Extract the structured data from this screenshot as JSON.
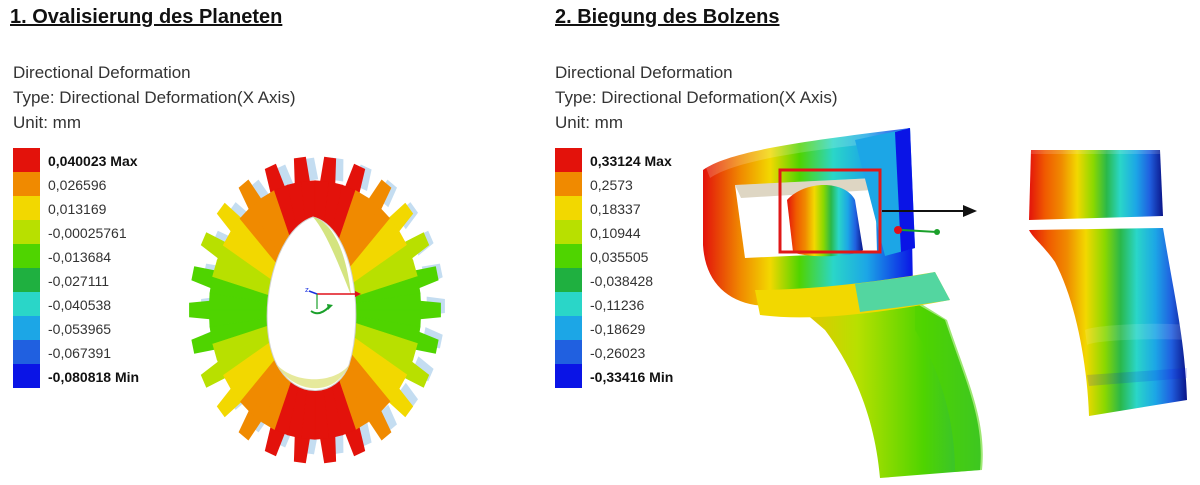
{
  "panels": [
    {
      "title": "1. Ovalisierung des Planeten",
      "meta": [
        "Directional Deformation",
        "Type: Directional Deformation(X Axis)",
        "Unit: mm"
      ],
      "legend": [
        {
          "label": "0,040023 Max",
          "color": "#e3120b",
          "bold": true
        },
        {
          "label": "0,026596",
          "color": "#f08a00",
          "bold": false
        },
        {
          "label": "0,013169",
          "color": "#f2d800",
          "bold": false
        },
        {
          "label": "-0,00025761",
          "color": "#b8e000",
          "bold": false
        },
        {
          "label": "-0,013684",
          "color": "#4fd400",
          "bold": false
        },
        {
          "label": "-0,027111",
          "color": "#1fb040",
          "bold": false
        },
        {
          "label": "-0,040538",
          "color": "#2ad6c8",
          "bold": false
        },
        {
          "label": "-0,053965",
          "color": "#1ca6e6",
          "bold": false
        },
        {
          "label": "-0,067391",
          "color": "#2060e0",
          "bold": false
        },
        {
          "label": "-0,080818 Min",
          "color": "#0a14e6",
          "bold": true
        }
      ]
    },
    {
      "title": "2. Biegung des Bolzens",
      "meta": [
        "Directional Deformation",
        "Type: Directional Deformation(X Axis)",
        "Unit: mm"
      ],
      "legend": [
        {
          "label": "0,33124 Max",
          "color": "#e3120b",
          "bold": true
        },
        {
          "label": "0,2573",
          "color": "#f08a00",
          "bold": false
        },
        {
          "label": "0,18337",
          "color": "#f2d800",
          "bold": false
        },
        {
          "label": "0,10944",
          "color": "#b8e000",
          "bold": false
        },
        {
          "label": "0,035505",
          "color": "#4fd400",
          "bold": false
        },
        {
          "label": "-0,038428",
          "color": "#1fb040",
          "bold": false
        },
        {
          "label": "-0,11236",
          "color": "#2ad6c8",
          "bold": false
        },
        {
          "label": "-0,18629",
          "color": "#1ca6e6",
          "bold": false
        },
        {
          "label": "-0,26023",
          "color": "#2060e0",
          "bold": false
        },
        {
          "label": "-0,33416 Min",
          "color": "#0a14e6",
          "bold": true
        }
      ]
    }
  ],
  "colors": {
    "highlight_box": "#e01818",
    "arrow": "#111111"
  }
}
